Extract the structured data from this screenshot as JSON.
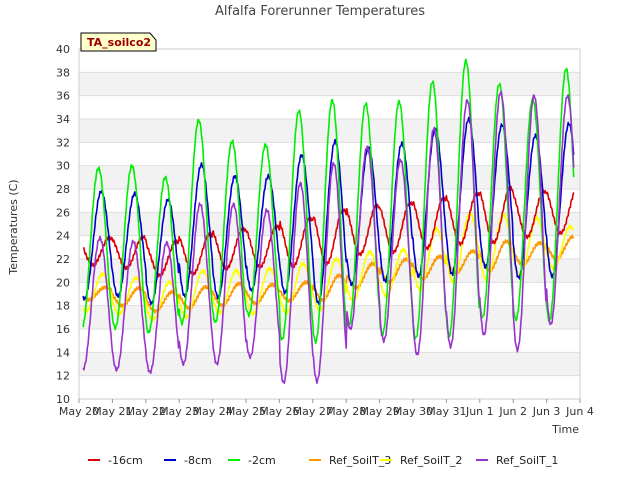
{
  "chart_data": {
    "type": "line",
    "title": "Alfalfa Forerunner Temperatures",
    "xlabel": "Time",
    "ylabel": "Temperatures (C)",
    "annotation": "TA_soilco2",
    "ylim": [
      10,
      40
    ],
    "y_ticks": [
      10,
      12,
      14,
      16,
      18,
      20,
      22,
      24,
      26,
      28,
      30,
      32,
      34,
      36,
      38,
      40
    ],
    "xlim": [
      "2024-05-20",
      "2024-06-04"
    ],
    "x_ticks": [
      "May 20",
      "May 21",
      "May 22",
      "May 23",
      "May 24",
      "May 25",
      "May 26",
      "May 27",
      "May 28",
      "May 29",
      "May 30",
      "May 31",
      "Jun 1",
      "Jun 2",
      "Jun 3",
      "Jun 4"
    ],
    "x_tick_dates": [
      "2024-05-20",
      "2024-05-21",
      "2024-05-22",
      "2024-05-23",
      "2024-05-24",
      "2024-05-25",
      "2024-05-26",
      "2024-05-27",
      "2024-05-28",
      "2024-05-29",
      "2024-05-30",
      "2024-05-31",
      "2024-06-01",
      "2024-06-02",
      "2024-06-03",
      "2024-06-04"
    ],
    "grid": true,
    "legend_position": "bottom",
    "days": [
      "2024-05-20",
      "2024-05-21",
      "2024-05-22",
      "2024-05-23",
      "2024-05-24",
      "2024-05-25",
      "2024-05-26",
      "2024-05-27",
      "2024-05-28",
      "2024-05-29",
      "2024-05-30",
      "2024-05-31",
      "2024-06-01",
      "2024-06-02",
      "2024-06-03"
    ],
    "series": [
      {
        "name": "-16cm",
        "color": "#dd0000",
        "peak_hour": 22,
        "daily_min": [
          21.5,
          21.2,
          20.6,
          20.7,
          21.2,
          21.3,
          21.4,
          21.6,
          22.4,
          22.6,
          22.9,
          23.3,
          23.4,
          23.9,
          24.2
        ],
        "daily_max": [
          23.8,
          23.9,
          23.5,
          24.1,
          24.6,
          24.8,
          25.5,
          26.2,
          26.6,
          26.8,
          27.2,
          27.6,
          28.1,
          27.8,
          28.0
        ]
      },
      {
        "name": "-8cm",
        "color": "#0000cc",
        "peak_hour": 16,
        "daily_min": [
          18.6,
          18.8,
          18.2,
          18.8,
          18.7,
          19.3,
          19.1,
          18.2,
          19.8,
          20.1,
          20.5,
          20.7,
          21.3,
          20.4,
          20.5
        ],
        "daily_max": [
          27.8,
          27.6,
          27.1,
          30.1,
          29.1,
          29.1,
          30.9,
          32.1,
          31.6,
          31.9,
          33.2,
          34.0,
          33.5,
          32.6,
          33.6
        ]
      },
      {
        "name": "-2cm",
        "color": "#00ee00",
        "peak_hour": 14,
        "daily_min": [
          16.0,
          16.1,
          15.7,
          16.5,
          16.6,
          17.2,
          15.1,
          14.9,
          16.3,
          15.5,
          15.2,
          15.4,
          17.0,
          16.8,
          16.7
        ],
        "daily_max": [
          29.8,
          30.0,
          29.0,
          33.9,
          32.1,
          31.8,
          34.7,
          35.6,
          35.3,
          35.5,
          37.2,
          39.0,
          37.0,
          35.7,
          38.3
        ]
      },
      {
        "name": "Ref_SoilT_3",
        "color": "#ff9900",
        "peak_hour": 19,
        "daily_min": [
          18.5,
          18.0,
          17.5,
          17.8,
          18.0,
          18.2,
          18.4,
          18.5,
          19.5,
          20.0,
          20.3,
          20.8,
          21.0,
          21.5,
          22.0
        ],
        "daily_max": [
          19.6,
          19.5,
          19.2,
          19.6,
          19.9,
          19.8,
          20.0,
          20.6,
          21.6,
          22.0,
          22.2,
          22.7,
          23.5,
          23.4,
          23.9
        ]
      },
      {
        "name": "Ref_SoilT_2",
        "color": "#ffff00",
        "peak_hour": 17,
        "daily_min": [
          17.5,
          17.3,
          16.8,
          17.0,
          17.4,
          17.3,
          17.4,
          17.6,
          18.4,
          18.8,
          19.4,
          20.0,
          20.2,
          20.5,
          21.2
        ],
        "daily_max": [
          20.7,
          20.4,
          20.0,
          21.0,
          21.0,
          21.2,
          21.6,
          22.0,
          22.6,
          22.8,
          24.6,
          25.9,
          25.8,
          25.5,
          24.8
        ]
      },
      {
        "name": "Ref_SoilT_1",
        "color": "#9933cc",
        "peak_hour": 15,
        "daily_min": [
          12.6,
          12.5,
          12.3,
          13.0,
          13.0,
          13.6,
          11.4,
          11.5,
          16.0,
          15.0,
          13.8,
          14.5,
          15.5,
          14.2,
          16.4
        ],
        "daily_max": [
          23.8,
          23.5,
          23.4,
          26.7,
          26.7,
          26.2,
          28.5,
          30.2,
          31.6,
          30.5,
          33.2,
          35.6,
          36.3,
          36.0,
          36.0
        ]
      }
    ]
  }
}
